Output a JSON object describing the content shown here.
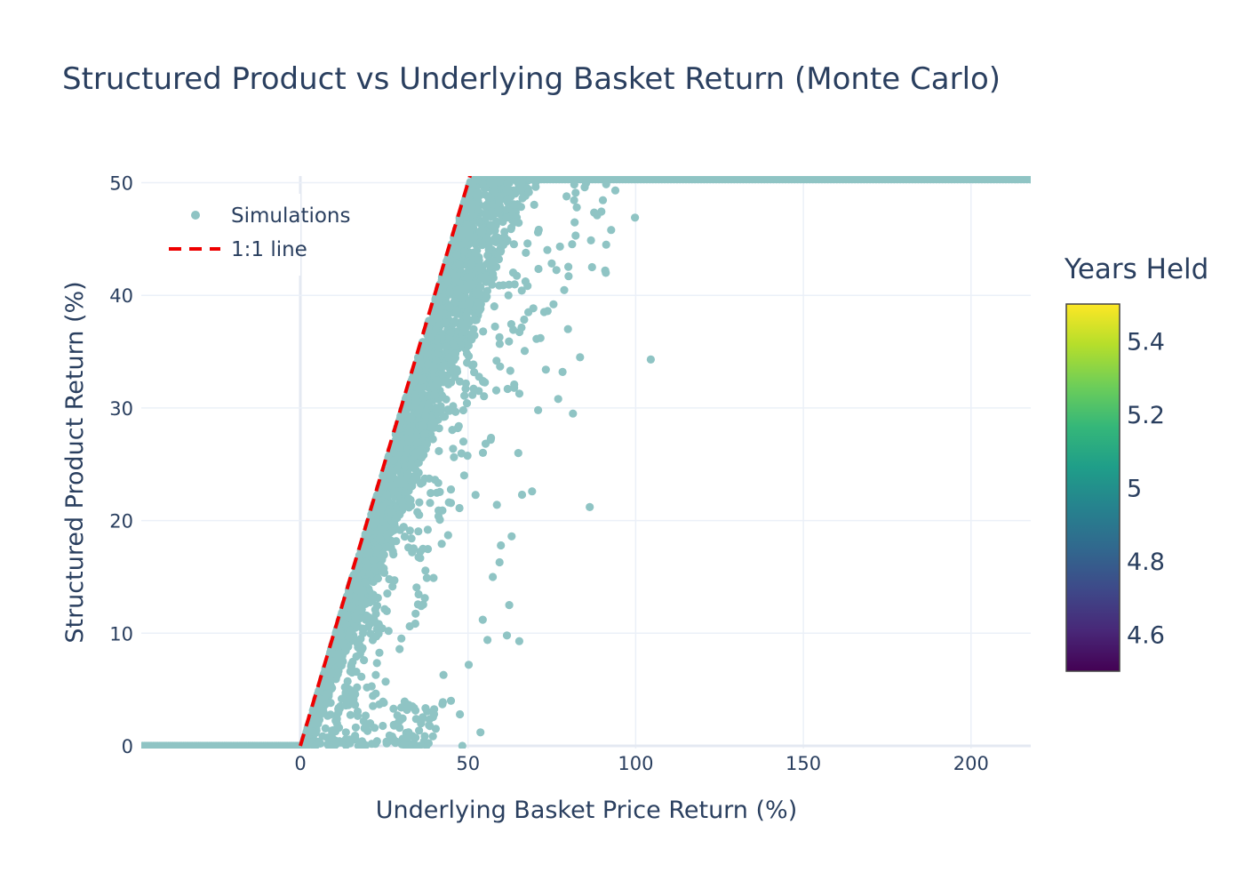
{
  "chart_data": {
    "type": "scatter",
    "title": "Structured Product vs Underlying Basket Return (Monte Carlo)",
    "xlabel": "Underlying Basket Price Return (%)",
    "ylabel": "Structured Product Return (%)",
    "xlim": [
      -47,
      218
    ],
    "ylim": [
      0,
      50.5
    ],
    "x_ticks": [
      0,
      50,
      100,
      150,
      200
    ],
    "y_ticks": [
      0,
      10,
      20,
      30,
      40,
      50
    ],
    "x_tick_labels": [
      "0",
      "50",
      "100",
      "150",
      "200"
    ],
    "y_tick_labels": [
      "0",
      "10",
      "20",
      "30",
      "40",
      "50"
    ],
    "grid": true,
    "legend_position": "top-left",
    "legend": [
      {
        "name": "Simulations",
        "symbol": "marker",
        "color": "#8fc4c4"
      },
      {
        "name": "1:1 line",
        "symbol": "dashed-line",
        "color": "#ee0000"
      }
    ],
    "series": [
      {
        "name": "Simulations",
        "color": "#8fc4c4",
        "cap": 50.3,
        "floor_run": {
          "x": [
            -47,
            0
          ],
          "y": 0
        },
        "cap_run": {
          "x": [
            52,
            218
          ],
          "y": 50.3
        },
        "band": {
          "x_start": 0,
          "x_end": 52,
          "y_start": 0,
          "y_end": 50.3,
          "max_spread": 14
        },
        "outliers": [
          [
            104.5,
            34.3
          ],
          [
            86.3,
            21.2
          ],
          [
            99.8,
            46.9
          ],
          [
            92.7,
            45.8
          ],
          [
            91.2,
            44.5
          ],
          [
            90.9,
            42.2
          ],
          [
            91.1,
            42.0
          ],
          [
            87.0,
            42.5
          ],
          [
            83.4,
            34.5
          ],
          [
            81.3,
            29.5
          ],
          [
            78.2,
            33.2
          ],
          [
            76.9,
            30.8
          ],
          [
            70.9,
            29.8
          ],
          [
            69.1,
            22.6
          ],
          [
            65.3,
            9.3
          ],
          [
            65.0,
            26.0
          ],
          [
            61.6,
            9.8
          ],
          [
            55.8,
            9.4
          ],
          [
            53.7,
            1.2
          ],
          [
            47.6,
            2.8
          ],
          [
            48.3,
            0.0
          ],
          [
            59.4,
            16.3
          ],
          [
            59.8,
            17.8
          ],
          [
            54.4,
            11.2
          ],
          [
            42.7,
            6.3
          ],
          [
            75.5,
            39.2
          ],
          [
            79.8,
            37.0
          ],
          [
            73.2,
            33.4
          ],
          [
            62.3,
            12.5
          ],
          [
            66.1,
            22.3
          ],
          [
            84.8,
            49.6
          ],
          [
            88.5,
            47.1
          ],
          [
            82.1,
            45.3
          ],
          [
            57.4,
            15.0
          ],
          [
            50.2,
            7.2
          ],
          [
            44.9,
            4.0
          ],
          [
            58.6,
            21.4
          ],
          [
            63.0,
            18.6
          ],
          [
            71.6,
            36.2
          ],
          [
            68.0,
            38.5
          ]
        ]
      },
      {
        "name": "1:1 line",
        "color": "#ee0000",
        "x": [
          0,
          51
        ],
        "y": [
          0,
          51
        ]
      }
    ],
    "colorbar": {
      "title": "Years Held",
      "range": [
        4.5,
        5.5
      ],
      "ticks": [
        4.6,
        4.8,
        5,
        5.2,
        5.4
      ],
      "tick_labels": [
        "4.6",
        "4.8",
        "5",
        "5.2",
        "5.4"
      ],
      "colorscale": [
        "#440154",
        "#482878",
        "#3e4989",
        "#31688e",
        "#26828e",
        "#1f9e89",
        "#35b779",
        "#6ece58",
        "#b5de2b",
        "#fde725"
      ]
    }
  }
}
